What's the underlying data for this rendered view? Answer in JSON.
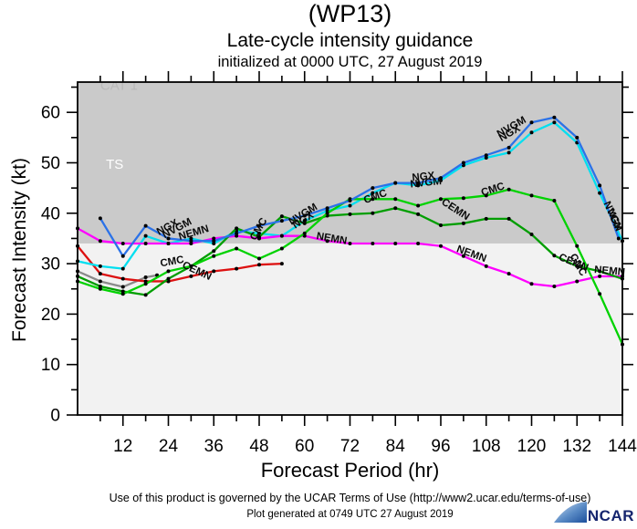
{
  "header": {
    "storm_id": "(WP13)",
    "title": "Late-cycle intensity guidance",
    "init_line": "initialized at 0000 UTC, 27 August 2019"
  },
  "footer": {
    "terms_line": "Use of this product is governed by the UCAR Terms of Use (http://www2.ucar.edu/terms-of-use)",
    "generated_line": "Plot generated at 0749 UTC   27 August 2019"
  },
  "logo": {
    "text": "NCAR",
    "text_color": "#15256e"
  },
  "chart_data": {
    "type": "line",
    "title": "(WP13) Late-cycle intensity guidance",
    "xlabel": "Forecast Period (hr)",
    "ylabel": "Forecast Intensity (kt)",
    "x_unit": "hr",
    "y_unit": "kt",
    "x_range": [
      0,
      144
    ],
    "y_range": [
      0,
      66
    ],
    "x_major_ticks": [
      12,
      24,
      36,
      48,
      60,
      72,
      84,
      96,
      108,
      120,
      132,
      144
    ],
    "x_minor_step": 6,
    "y_major_ticks": [
      0,
      10,
      20,
      30,
      40,
      50,
      60
    ],
    "y_minor_step": 5,
    "grid": false,
    "plot_bg": "#f2f2f2",
    "band": {
      "from_kt": 34,
      "color": "#cacaca",
      "labels": [
        {
          "text": "TS",
          "hr": 7.5,
          "kt": 48.8,
          "color": "#ffffff",
          "size": 15
        },
        {
          "text": "CAT 1",
          "hr": 6.0,
          "kt": 64.5,
          "color": "#b9b9b9",
          "size": 15
        }
      ]
    },
    "marker_color": "#000000",
    "series": [
      {
        "name": "gray (unlabeled)",
        "color": "#8a8a8a",
        "x": [
          0,
          6,
          12,
          18,
          21
        ],
        "y": [
          28.5,
          26.5,
          25.4,
          27.3,
          27.7
        ]
      },
      {
        "name": "red (unlabeled)",
        "color": "#dd1111",
        "x": [
          0,
          6,
          12,
          18,
          24,
          30,
          36,
          42,
          48,
          54
        ],
        "y": [
          33.5,
          28,
          27,
          26.5,
          26.5,
          27.5,
          28.5,
          29,
          29.8,
          30
        ]
      },
      {
        "name": "NVGM",
        "color": "#00dff0",
        "x": [
          0,
          6,
          12,
          18,
          24,
          30,
          36,
          42,
          48,
          54,
          60,
          66,
          72,
          78,
          84,
          90,
          96,
          102,
          108,
          114,
          120,
          126,
          132,
          138,
          144
        ],
        "y": [
          30.5,
          29.5,
          29,
          35.5,
          34,
          35,
          34,
          36.5,
          36,
          35.5,
          38.5,
          40.5,
          41.5,
          44,
          46,
          45.5,
          46.5,
          49.5,
          51,
          52,
          56,
          58,
          54,
          44,
          34.5
        ]
      },
      {
        "name": "NEMN",
        "color": "#ff00ff",
        "x": [
          0,
          6,
          12,
          18,
          24,
          30,
          36,
          42,
          48,
          54,
          60,
          66,
          72,
          78,
          84,
          90,
          96,
          102,
          108,
          114,
          120,
          126,
          132,
          138,
          144
        ],
        "y": [
          37,
          34.5,
          34,
          34,
          34,
          34,
          35,
          35.5,
          35,
          35.5,
          35.5,
          34.5,
          34,
          34,
          34,
          34,
          33.5,
          31.5,
          29.5,
          28,
          26,
          25.5,
          26.5,
          27.5,
          27.5
        ]
      },
      {
        "name": "CEMN",
        "color": "#009e00",
        "x": [
          0,
          6,
          12,
          18,
          24,
          30,
          36,
          42,
          48,
          54,
          60,
          66,
          72,
          78,
          84,
          90,
          96,
          102,
          108,
          114,
          120,
          126,
          132,
          138,
          144
        ],
        "y": [
          27.5,
          25.5,
          24.5,
          23.8,
          27,
          29.5,
          32.5,
          37,
          35.3,
          39.4,
          38,
          39.5,
          39.8,
          40,
          41,
          39.8,
          37.6,
          38,
          38.9,
          38.9,
          35.8,
          31.6,
          29.5,
          28.5,
          27
        ]
      },
      {
        "name": "CMC",
        "color": "#00d200",
        "x": [
          0,
          6,
          12,
          18,
          24,
          30,
          36,
          42,
          48,
          54,
          60,
          66,
          72,
          78,
          84,
          90,
          96,
          102,
          108,
          114,
          120,
          126,
          132,
          138,
          144
        ],
        "y": [
          26.5,
          25,
          24,
          26,
          28.5,
          29.5,
          31.5,
          33,
          31,
          33,
          36,
          40,
          42.8,
          42.8,
          42.8,
          41.5,
          42.8,
          43,
          43.5,
          44.7,
          43.5,
          42.5,
          33.5,
          24,
          14
        ]
      },
      {
        "name": "NGX",
        "color": "#2b72e8",
        "x": [
          6,
          12,
          18,
          24,
          30,
          36,
          42,
          48,
          54,
          60,
          66,
          72,
          78,
          84,
          90,
          96,
          102,
          108,
          114,
          120,
          126,
          132,
          138,
          143
        ],
        "y": [
          39,
          31.5,
          37.5,
          35,
          34.5,
          34.5,
          36,
          37.5,
          38.5,
          39.5,
          41,
          42.5,
          45,
          46,
          46,
          47,
          50,
          51.5,
          53,
          58,
          59,
          55,
          45.5,
          35
        ]
      }
    ],
    "line_labels": [
      {
        "text": "NGX",
        "hr": 21.5,
        "kt": 35.6,
        "angle": -28
      },
      {
        "text": "NVGM",
        "hr": 23,
        "kt": 35.0,
        "angle": -28
      },
      {
        "text": "NEMN",
        "hr": 27,
        "kt": 34.7,
        "angle": -16
      },
      {
        "text": "CMC",
        "hr": 22,
        "kt": 29.4,
        "angle": -10
      },
      {
        "text": "CEMN",
        "hr": 27.5,
        "kt": 29.3,
        "angle": 25
      },
      {
        "text": "CMC",
        "hr": 47,
        "kt": 34.5,
        "angle": -60
      },
      {
        "text": "NVGM",
        "hr": 56.5,
        "kt": 37.6,
        "angle": -32
      },
      {
        "text": "NGX",
        "hr": 57.5,
        "kt": 36.9,
        "angle": -32
      },
      {
        "text": "NEMN",
        "hr": 63,
        "kt": 34.9,
        "angle": 10
      },
      {
        "text": "CMC",
        "hr": 76,
        "kt": 41.9,
        "angle": -20
      },
      {
        "text": "NGX",
        "hr": 88.5,
        "kt": 46.4,
        "angle": -6
      },
      {
        "text": "NVGM",
        "hr": 88,
        "kt": 45.1,
        "angle": -6
      },
      {
        "text": "CEMN",
        "hr": 96,
        "kt": 41.9,
        "angle": 33
      },
      {
        "text": "NEMN",
        "hr": 100,
        "kt": 32.4,
        "angle": 20
      },
      {
        "text": "CMC",
        "hr": 107,
        "kt": 43.4,
        "angle": -18
      },
      {
        "text": "NVGM",
        "hr": 111.5,
        "kt": 55.0,
        "angle": -30
      },
      {
        "text": "NGX",
        "hr": 112,
        "kt": 54.2,
        "angle": -30
      },
      {
        "text": "CEMN",
        "hr": 127,
        "kt": 30.8,
        "angle": 22
      },
      {
        "text": "CMC",
        "hr": 130,
        "kt": 31.5,
        "angle": 60
      },
      {
        "text": "NEMN",
        "hr": 136.5,
        "kt": 28.2,
        "angle": 5
      },
      {
        "text": "NVGM",
        "hr": 139,
        "kt": 42.0,
        "angle": 66
      },
      {
        "text": "NGX",
        "hr": 140,
        "kt": 40.5,
        "angle": 66
      }
    ]
  }
}
